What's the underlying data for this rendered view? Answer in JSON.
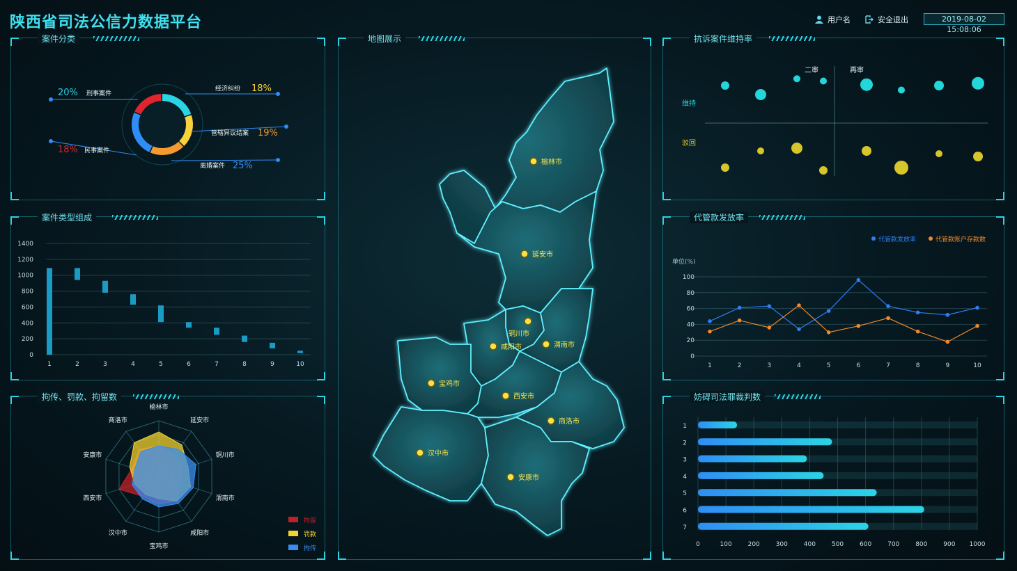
{
  "header": {
    "title": "陕西省司法公信力数据平台",
    "user_label": "用户名",
    "logout_label": "安全退出",
    "datetime": "2019-08-02  15:08:06"
  },
  "panels": {
    "case_category": {
      "title": "案件分类",
      "items": [
        {
          "pct": "20%",
          "label": "刑事案件",
          "color": "#2bd4e4"
        },
        {
          "pct": "18%",
          "label": "民事案件",
          "color": "#e0252f"
        },
        {
          "pct": "18%",
          "label": "经济纠纷",
          "color": "#f7d23a"
        },
        {
          "pct": "19%",
          "label": "管辖异议结案",
          "color": "#f59a2f"
        },
        {
          "pct": "25%",
          "label": "离婚案件",
          "color": "#2f8ef5"
        }
      ]
    },
    "case_type": {
      "title": "案件类型组成"
    },
    "detention": {
      "title": "拘传、罚款、拘留数",
      "legend": [
        "拘留",
        "罚款",
        "拘传"
      ]
    },
    "map": {
      "title": "地图展示"
    },
    "appeal": {
      "title": "抗诉案件维持率",
      "col_labels": [
        "二审",
        "再审"
      ],
      "row_labels": [
        "维持",
        "驳回"
      ]
    },
    "custody": {
      "title": "代管款发放率",
      "legend": [
        "代管款发放率",
        "代管款账户存款数"
      ],
      "unit": "单位(%)"
    },
    "obstruct": {
      "title": "妨碍司法罪裁判数"
    }
  },
  "map": {
    "cities": [
      {
        "name": "榆林市"
      },
      {
        "name": "延安市"
      },
      {
        "name": "铜川市"
      },
      {
        "name": "渭南市"
      },
      {
        "name": "咸阳市"
      },
      {
        "name": "宝鸡市"
      },
      {
        "name": "西安市"
      },
      {
        "name": "商洛市"
      },
      {
        "name": "汉中市"
      },
      {
        "name": "安康市"
      }
    ]
  },
  "chart_data": [
    {
      "type": "pie",
      "title": "案件分类",
      "categories": [
        "刑事案件",
        "经济纠纷",
        "管辖异议结案",
        "离婚案件",
        "民事案件"
      ],
      "values": [
        20,
        18,
        19,
        25,
        18
      ]
    },
    {
      "type": "bar",
      "title": "案件类型组成",
      "categories": [
        "1",
        "2",
        "3",
        "4",
        "5",
        "6",
        "7",
        "8",
        "9",
        "10"
      ],
      "series": [
        {
          "low": [
            0,
            940,
            780,
            630,
            410,
            340,
            250,
            160,
            80,
            20
          ],
          "high": [
            1090,
            1090,
            930,
            760,
            620,
            410,
            340,
            240,
            150,
            50
          ]
        }
      ],
      "ylim": [
        0,
        1400
      ],
      "yticks": [
        0,
        200,
        400,
        600,
        800,
        1000,
        1200,
        1400
      ]
    },
    {
      "type": "radar",
      "title": "拘传、罚款、拘留数",
      "categories": [
        "榆林市",
        "延安市",
        "铜川市",
        "渭南市",
        "咸阳市",
        "宝鸡市",
        "汉中市",
        "西安市",
        "安康市",
        "商洛市"
      ],
      "series": [
        {
          "name": "拘留",
          "color": "#c0202a",
          "values": [
            55,
            45,
            45,
            40,
            55,
            50,
            45,
            75,
            50,
            60
          ]
        },
        {
          "name": "罚款",
          "color": "#f2d22e",
          "values": [
            80,
            70,
            55,
            60,
            55,
            40,
            40,
            45,
            55,
            75
          ]
        },
        {
          "name": "拘传",
          "color": "#3a8df0",
          "values": [
            55,
            60,
            70,
            65,
            60,
            55,
            50,
            50,
            45,
            55
          ]
        }
      ]
    },
    {
      "type": "scatter",
      "title": "抗诉案件维持率",
      "series": [
        {
          "name": "维持",
          "color": "#22d6d9",
          "points": [
            [
              1,
              80,
              6
            ],
            [
              2,
              60,
              8
            ],
            [
              3,
              95,
              5
            ],
            [
              4,
              90,
              5
            ],
            [
              5,
              82,
              9
            ],
            [
              6,
              70,
              5
            ],
            [
              7,
              80,
              7
            ],
            [
              8,
              85,
              9
            ]
          ]
        },
        {
          "name": "驳回",
          "color": "#d6c62a",
          "points": [
            [
              1,
              20,
              6
            ],
            [
              2,
              50,
              5
            ],
            [
              3,
              55,
              8
            ],
            [
              4,
              15,
              6
            ],
            [
              5,
              50,
              7
            ],
            [
              6,
              20,
              10
            ],
            [
              7,
              45,
              5
            ],
            [
              8,
              40,
              7
            ]
          ]
        }
      ]
    },
    {
      "type": "line",
      "title": "代管款发放率",
      "x": [
        1,
        2,
        3,
        4,
        5,
        6,
        7,
        8,
        9,
        10
      ],
      "ylim": [
        0,
        100
      ],
      "yticks": [
        0,
        20,
        40,
        60,
        80,
        100
      ],
      "series": [
        {
          "name": "代管款发放率",
          "color": "#2f7ef0",
          "values": [
            44,
            61,
            63,
            34,
            57,
            96,
            63,
            55,
            52,
            61
          ]
        },
        {
          "name": "代管款账户存款数",
          "color": "#f08a2a",
          "values": [
            31,
            45,
            36,
            64,
            30,
            38,
            48,
            31,
            18,
            38
          ]
        }
      ]
    },
    {
      "type": "bar",
      "orientation": "horizontal",
      "title": "妨碍司法罪裁判数",
      "categories": [
        "1",
        "2",
        "3",
        "4",
        "5",
        "6",
        "7"
      ],
      "values": [
        140,
        480,
        390,
        450,
        640,
        810,
        610
      ],
      "xlim": [
        0,
        1000
      ],
      "xticks": [
        0,
        100,
        200,
        300,
        400,
        500,
        600,
        700,
        800,
        900,
        1000
      ]
    }
  ]
}
